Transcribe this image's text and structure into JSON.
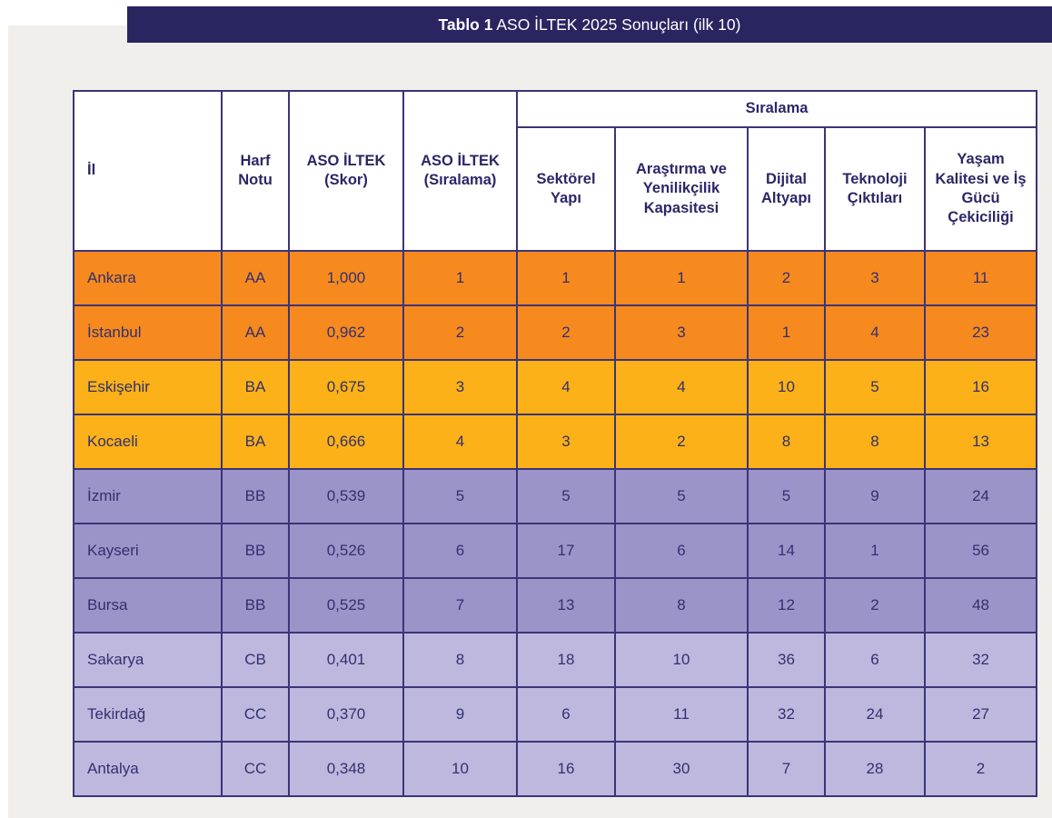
{
  "title": {
    "prefix": "Tablo 1",
    "text": " ASO İLTEK 2025 Sonuçları (ilk 10)"
  },
  "table": {
    "group_header": "Sıralama",
    "columns": [
      "İl",
      "Harf Notu",
      "ASO İLTEK (Skor)",
      "ASO İLTEK (Sıralama)",
      "Sektörel Yapı",
      "Araştırma ve Yenilikçilik Kapasitesi",
      "Dijital Altyapı",
      "Teknoloji Çıktıları",
      "Yaşam Kalitesi ve İş Gücü Çekiciliği"
    ],
    "rows": [
      {
        "tier": "orange",
        "cells": [
          "Ankara",
          "AA",
          "1,000",
          "1",
          "1",
          "1",
          "2",
          "3",
          "11"
        ]
      },
      {
        "tier": "orange",
        "cells": [
          "İstanbul",
          "AA",
          "0,962",
          "2",
          "2",
          "3",
          "1",
          "4",
          "23"
        ]
      },
      {
        "tier": "amber",
        "cells": [
          "Eskişehir",
          "BA",
          "0,675",
          "3",
          "4",
          "4",
          "10",
          "5",
          "16"
        ]
      },
      {
        "tier": "amber",
        "cells": [
          "Kocaeli",
          "BA",
          "0,666",
          "4",
          "3",
          "2",
          "8",
          "8",
          "13"
        ]
      },
      {
        "tier": "purple",
        "cells": [
          "İzmir",
          "BB",
          "0,539",
          "5",
          "5",
          "5",
          "5",
          "9",
          "24"
        ]
      },
      {
        "tier": "purple",
        "cells": [
          "Kayseri",
          "BB",
          "0,526",
          "6",
          "17",
          "6",
          "14",
          "1",
          "56"
        ]
      },
      {
        "tier": "purple",
        "cells": [
          "Bursa",
          "BB",
          "0,525",
          "7",
          "13",
          "8",
          "12",
          "2",
          "48"
        ]
      },
      {
        "tier": "lavender",
        "cells": [
          "Sakarya",
          "CB",
          "0,401",
          "8",
          "18",
          "10",
          "36",
          "6",
          "32"
        ]
      },
      {
        "tier": "lavender",
        "cells": [
          "Tekirdağ",
          "CC",
          "0,370",
          "9",
          "6",
          "11",
          "32",
          "24",
          "27"
        ]
      },
      {
        "tier": "lavender",
        "cells": [
          "Antalya",
          "CC",
          "0,348",
          "10",
          "16",
          "30",
          "7",
          "28",
          "2"
        ]
      }
    ]
  },
  "colors": {
    "page_bg": "#ffffff",
    "panel_bg": "#f0efec",
    "table_bg": "#ffffff",
    "title_bar_bg": "#292560",
    "title_text": "#ffffff",
    "header_text": "#2b2766",
    "cell_text": "#33306e",
    "border": "#3b3577",
    "tier_orange": "#f68a1f",
    "tier_amber": "#fbb117",
    "tier_purple": "#9b94c9",
    "tier_lavender": "#beb8df"
  }
}
